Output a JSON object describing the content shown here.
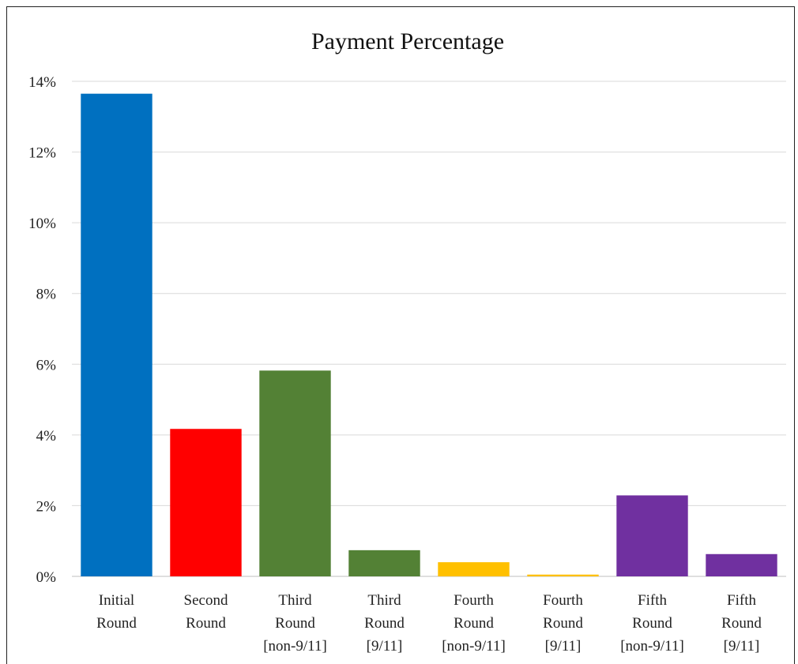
{
  "chart_data": {
    "type": "bar",
    "title": "Payment Percentage",
    "xlabel": "",
    "ylabel": "",
    "ylim": [
      0,
      14
    ],
    "yticks": [
      0,
      2,
      4,
      6,
      8,
      10,
      12,
      14
    ],
    "ytick_labels": [
      "0%",
      "2%",
      "4%",
      "6%",
      "8%",
      "10%",
      "12%",
      "14%"
    ],
    "grid": true,
    "legend": "none",
    "categories": [
      [
        "Initial",
        "Round"
      ],
      [
        "Second",
        "Round"
      ],
      [
        "Third",
        "Round",
        "[non-9/11]"
      ],
      [
        "Third",
        "Round",
        "[9/11]"
      ],
      [
        "Fourth",
        "Round",
        "[non-9/11]"
      ],
      [
        "Fourth",
        "Round",
        "[9/11]"
      ],
      [
        "Fifth",
        "Round",
        "[non-9/11]"
      ],
      [
        "Fifth",
        "Round",
        "[9/11]"
      ]
    ],
    "values": [
      13.65,
      4.17,
      5.82,
      0.74,
      0.4,
      0.05,
      2.29,
      0.63
    ],
    "colors": [
      "#0070c0",
      "#ff0000",
      "#538135",
      "#538135",
      "#ffc000",
      "#ffc000",
      "#7030a0",
      "#7030a0"
    ]
  }
}
